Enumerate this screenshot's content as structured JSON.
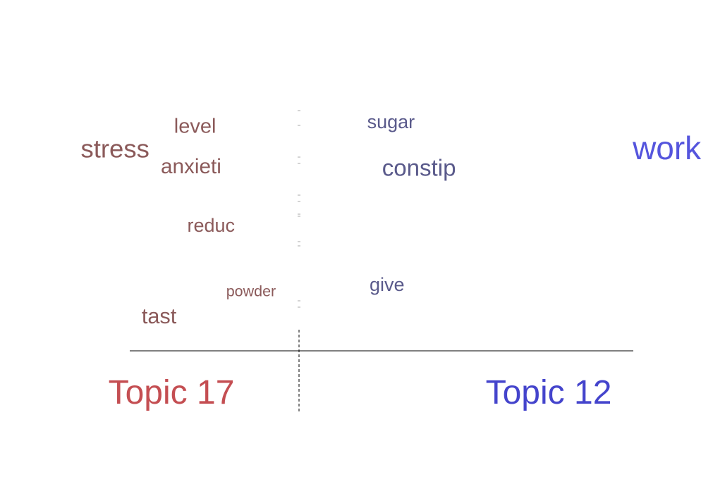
{
  "chart_data": {
    "type": "scatter",
    "title": "",
    "xlabel": "",
    "ylabel": "",
    "grid": false,
    "legend": "none",
    "colors": {
      "left_topic": "#c44e52",
      "right_topic": "#4444cc",
      "left_words": "#8b5a5a",
      "right_words": "#5a5a8b",
      "right_strong": "#5555dd",
      "axis": "#000000",
      "tiny_marks": "#aaaaaa"
    },
    "topics": {
      "left_label": "Topic 17",
      "right_label": "Topic 12"
    },
    "words": [
      {
        "label": "work",
        "x": 0.92,
        "y": 0.88,
        "weight": 1.0,
        "group": "right",
        "strong": true
      },
      {
        "label": "stress",
        "x": -0.46,
        "y": 0.88,
        "weight": 0.72,
        "group": "left"
      },
      {
        "label": "level",
        "x": -0.26,
        "y": 0.99,
        "weight": 0.5,
        "group": "left"
      },
      {
        "label": "sugar",
        "x": 0.23,
        "y": 1.01,
        "weight": 0.44,
        "group": "right"
      },
      {
        "label": "anxieti",
        "x": -0.27,
        "y": 0.8,
        "weight": 0.52,
        "group": "left"
      },
      {
        "label": "constip",
        "x": 0.3,
        "y": 0.79,
        "weight": 0.62,
        "group": "right"
      },
      {
        "label": "reduc",
        "x": -0.22,
        "y": 0.52,
        "weight": 0.44,
        "group": "left"
      },
      {
        "label": "powder",
        "x": -0.12,
        "y": 0.21,
        "weight": 0.28,
        "group": "left"
      },
      {
        "label": "give",
        "x": 0.22,
        "y": 0.24,
        "weight": 0.44,
        "group": "right"
      },
      {
        "label": "tast",
        "x": -0.35,
        "y": 0.09,
        "weight": 0.55,
        "group": "left"
      }
    ],
    "tiny_marks": [
      {
        "y": 1.07
      },
      {
        "y": 1.0
      },
      {
        "y": 0.85
      },
      {
        "y": 0.82
      },
      {
        "y": 0.67
      },
      {
        "y": 0.64
      },
      {
        "y": 0.58
      },
      {
        "y": 0.57
      },
      {
        "y": 0.45
      },
      {
        "y": 0.43
      },
      {
        "y": 0.17
      },
      {
        "y": 0.14
      }
    ],
    "xlim": [
      -0.55,
      1.0
    ],
    "ylim": [
      0.0,
      1.08
    ]
  }
}
